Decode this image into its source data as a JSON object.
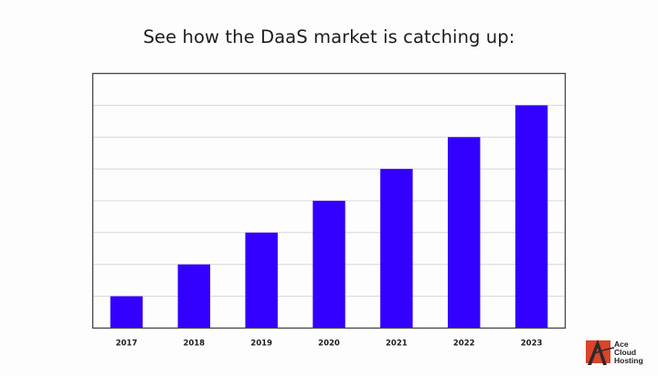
{
  "title": "See how the DaaS market is catching up:",
  "chart_data": {
    "type": "bar",
    "title": "See how the DaaS market is catching up:",
    "categories": [
      "2017",
      "2018",
      "2019",
      "2020",
      "2021",
      "2022",
      "2023"
    ],
    "values": [
      1,
      2,
      3,
      4,
      5,
      6,
      7
    ],
    "xlabel": "",
    "ylabel": "",
    "ylim": [
      0,
      8
    ],
    "grid": true,
    "legend": null,
    "bar_color": "#3300ff",
    "y_tick_labels_shown": false
  },
  "logo": {
    "brand": [
      "Ace",
      "Cloud",
      "Hosting"
    ],
    "accent_color": "#d9442a"
  }
}
